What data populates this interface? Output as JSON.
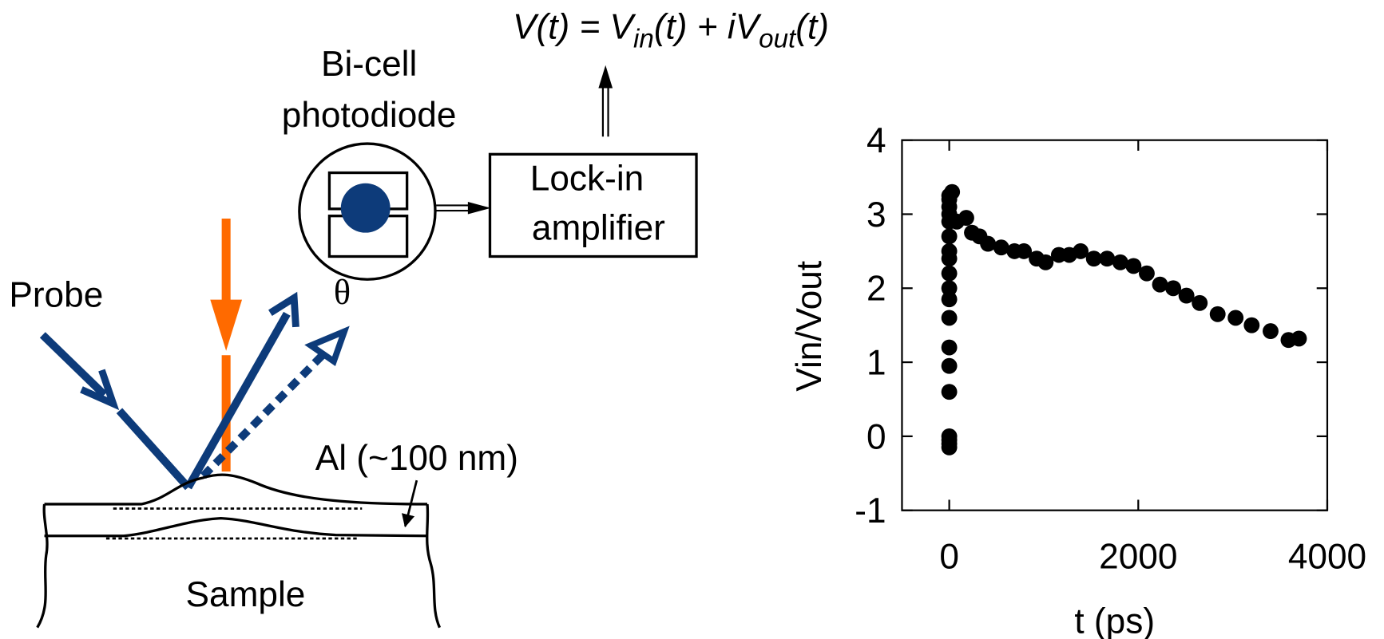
{
  "diagram": {
    "equation": {
      "part1": "V(t) = V",
      "sub1": "in",
      "part2": "(t) + iV",
      "sub2": "out",
      "part3": "(t)"
    },
    "detector": [
      "Bi-cell",
      "photodiode"
    ],
    "amplifier": [
      "Lock-in",
      "amplifier"
    ],
    "probe": "Probe",
    "angle": "θ",
    "film": "Al (~100 nm)",
    "sample": "Sample"
  },
  "chart_data": {
    "type": "scatter",
    "x_label": "t (ps)",
    "y_label": "Vin/Vout",
    "xlim": [
      -500,
      4000
    ],
    "xticks": [
      0,
      2000,
      4000
    ],
    "ylim": [
      -1,
      4
    ],
    "yticks": [
      -1,
      0,
      1,
      2,
      3,
      4
    ],
    "color": "#000000",
    "x": [
      0,
      0,
      0,
      0,
      0,
      0,
      0,
      0,
      0,
      0,
      0,
      0,
      0,
      0,
      0,
      0,
      0,
      0,
      0,
      30,
      80,
      180,
      240,
      320,
      410,
      550,
      690,
      790,
      925,
      1020,
      1160,
      1270,
      1390,
      1530,
      1670,
      1810,
      1950,
      2090,
      2230,
      2370,
      2510,
      2650,
      2840,
      3030,
      3200,
      3400,
      3590,
      3700
    ],
    "y": [
      -0.15,
      -0.1,
      -0.05,
      0,
      0.6,
      0.95,
      1.2,
      1.6,
      1.85,
      2.0,
      2.2,
      2.4,
      2.5,
      2.7,
      2.9,
      3.0,
      3.1,
      3.2,
      3.25,
      3.3,
      2.9,
      2.95,
      2.75,
      2.7,
      2.6,
      2.55,
      2.5,
      2.5,
      2.4,
      2.35,
      2.45,
      2.45,
      2.5,
      2.4,
      2.4,
      2.35,
      2.3,
      2.2,
      2.05,
      2.0,
      1.9,
      1.8,
      1.65,
      1.6,
      1.5,
      1.42,
      1.3,
      1.32
    ]
  }
}
